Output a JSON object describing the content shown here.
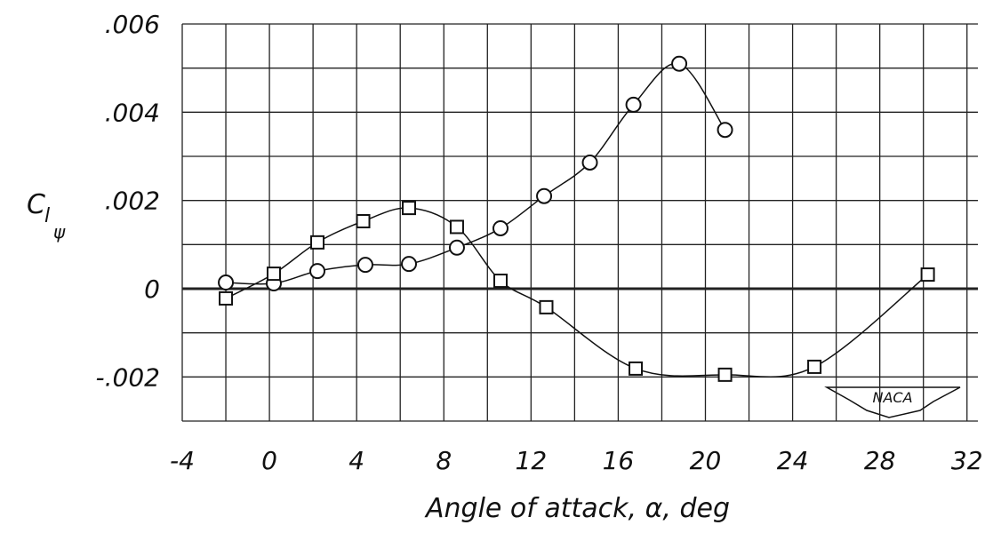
{
  "chart_data": {
    "type": "scatter",
    "xlabel": "Angle of attack, α, deg",
    "ylabel": "C",
    "ylabel_sub": "l",
    "ylabel_subsub": "ψ",
    "logo": "NACA",
    "xlim": [
      -4,
      32.5
    ],
    "ylim": [
      -0.003,
      0.006
    ],
    "xticks": [
      -4,
      0,
      4,
      8,
      12,
      16,
      20,
      24,
      28,
      32
    ],
    "yticks": [
      {
        "value": 0.006,
        "label": ".006"
      },
      {
        "value": 0.004,
        "label": ".004"
      },
      {
        "value": 0.002,
        "label": ".002"
      },
      0,
      {
        "value": -0.002,
        "label": "-.002"
      }
    ],
    "xgrid": [
      -4,
      -2,
      0,
      2,
      4,
      6,
      8,
      10,
      12,
      14,
      16,
      18,
      20,
      22,
      24,
      26,
      28,
      30,
      32
    ],
    "ygrid": [
      -0.003,
      -0.002,
      -0.001,
      0,
      0.001,
      0.002,
      0.003,
      0.004,
      0.005,
      0.006
    ],
    "grid": true,
    "series": [
      {
        "marker": "circle",
        "color": "#111",
        "x": [
          -2,
          0.2,
          2.2,
          4.4,
          6.4,
          8.6,
          10.6,
          12.6,
          14.7,
          16.7,
          18.8,
          20.9
        ],
        "values": [
          0.00014,
          0.00012,
          0.0004,
          0.00054,
          0.00056,
          0.00093,
          0.00137,
          0.0021,
          0.00286,
          0.00417,
          0.0051,
          0.0036
        ]
      },
      {
        "marker": "square",
        "color": "#111",
        "x": [
          -2,
          0.2,
          2.2,
          4.3,
          6.4,
          8.6,
          10.6,
          12.7,
          16.8,
          20.9,
          25,
          30.2
        ],
        "values": [
          -0.00022,
          0.00034,
          0.00105,
          0.00153,
          0.00183,
          0.0014,
          0.00018,
          -0.00042,
          -0.00181,
          -0.00195,
          -0.00177,
          0.00032
        ]
      }
    ]
  }
}
